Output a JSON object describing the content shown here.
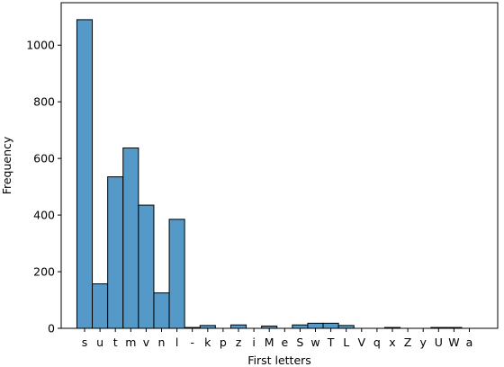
{
  "chart_data": {
    "type": "bar",
    "subtype": "histogram",
    "xlabel": "First letters",
    "ylabel": "Frequency",
    "ylim": [
      0,
      1150
    ],
    "yticks": [
      0,
      200,
      400,
      600,
      800,
      1000
    ],
    "bar_color": "#5499c7",
    "edge_color": "#000000",
    "grid": false,
    "categories": [
      "s",
      "u",
      "t",
      "m",
      "v",
      "n",
      "l",
      "-",
      "k",
      "p",
      "z",
      "i",
      "M",
      "e",
      "S",
      "w",
      "T",
      "L",
      "V",
      "q",
      "x",
      "Z",
      "y",
      "U",
      "W",
      "a"
    ],
    "values": [
      1090,
      157,
      535,
      637,
      435,
      125,
      385,
      3,
      10,
      0,
      12,
      0,
      8,
      0,
      12,
      18,
      18,
      10,
      0,
      0,
      3,
      0,
      0,
      3,
      3,
      0
    ]
  }
}
